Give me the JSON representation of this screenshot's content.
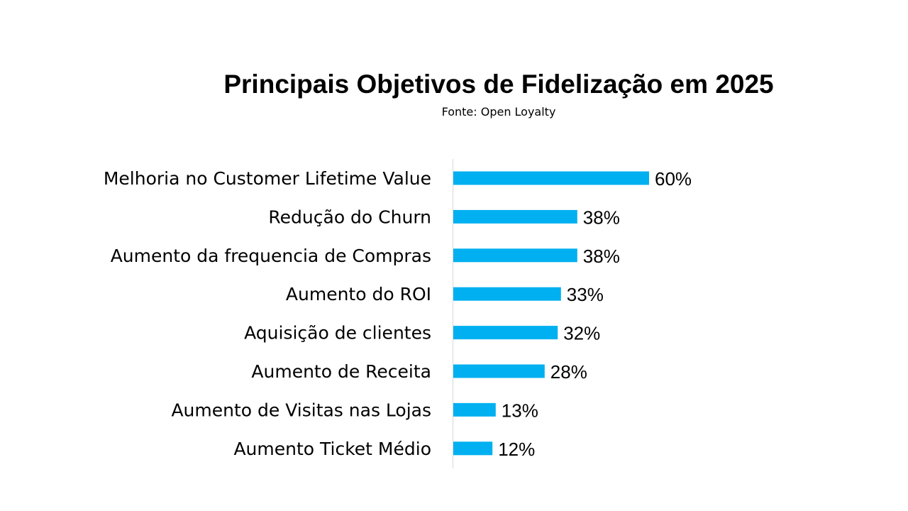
{
  "chart_data": {
    "type": "bar",
    "orientation": "horizontal",
    "title": "Principais Objetivos de Fidelização em 2025",
    "subtitle": "Fonte: Open Loyalty",
    "categories": [
      "Melhoria no Customer Lifetime Value",
      "Redução do Churn",
      "Aumento da frequencia de Compras",
      "Aumento do ROI",
      "Aquisição de clientes",
      "Aumento de Receita",
      "Aumento de Visitas nas Lojas",
      "Aumento Ticket Médio"
    ],
    "values": [
      60,
      38,
      38,
      33,
      32,
      28,
      13,
      12
    ],
    "value_labels": [
      "60%",
      "38%",
      "38%",
      "33%",
      "32%",
      "28%",
      "13%",
      "12%"
    ],
    "unit": "%",
    "xlim": [
      0,
      100
    ],
    "grid": false,
    "legend": "none",
    "bar_color": "#00B0F0",
    "axis_color": "#D9D9D9"
  }
}
